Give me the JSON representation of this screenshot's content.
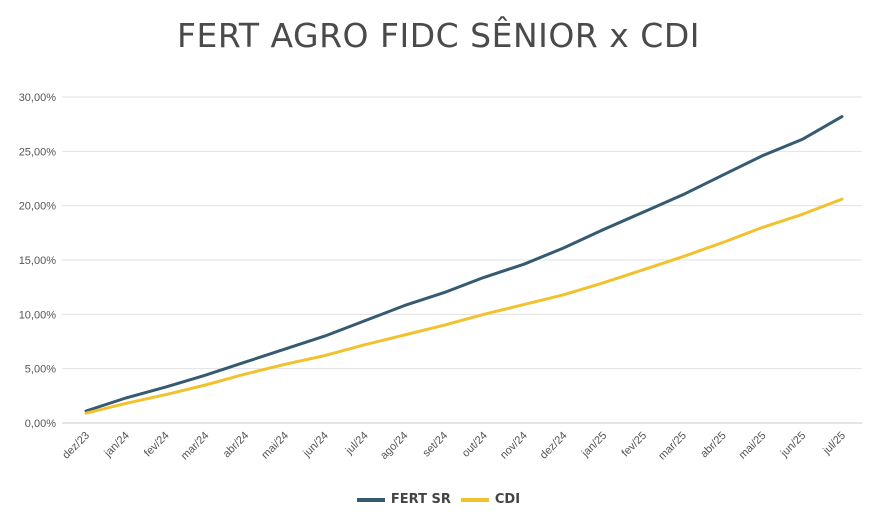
{
  "chart_data": {
    "type": "line",
    "title": "FERT AGRO FIDC SÊNIOR x CDI",
    "categories": [
      "dez/23",
      "jan/24",
      "fev/24",
      "mar/24",
      "abr/24",
      "mai/24",
      "jun/24",
      "jul/24",
      "ago/24",
      "set/24",
      "out/24",
      "nov/24",
      "dez/24",
      "jan/25",
      "fev/25",
      "mar/25",
      "abr/25",
      "mai/25",
      "jun/25",
      "jul/25"
    ],
    "y_ticks": [
      "0,00%",
      "5,00%",
      "10,00%",
      "15,00%",
      "20,00%",
      "25,00%",
      "30,00%"
    ],
    "ylim": [
      0,
      30
    ],
    "grid": true,
    "legend_position": "bottom",
    "series": [
      {
        "name": "FERT SR",
        "color": "#365a72",
        "values": [
          1.1,
          2.3,
          3.3,
          4.4,
          5.6,
          6.8,
          8.0,
          9.4,
          10.8,
          12.0,
          13.4,
          14.6,
          16.1,
          17.8,
          19.4,
          21.0,
          22.8,
          24.6,
          26.1,
          28.2
        ]
      },
      {
        "name": "CDI",
        "color": "#f2c12e",
        "values": [
          0.9,
          1.8,
          2.6,
          3.5,
          4.5,
          5.4,
          6.2,
          7.2,
          8.1,
          9.0,
          10.0,
          10.9,
          11.8,
          12.9,
          14.1,
          15.3,
          16.6,
          18.0,
          19.2,
          20.6
        ]
      }
    ]
  }
}
